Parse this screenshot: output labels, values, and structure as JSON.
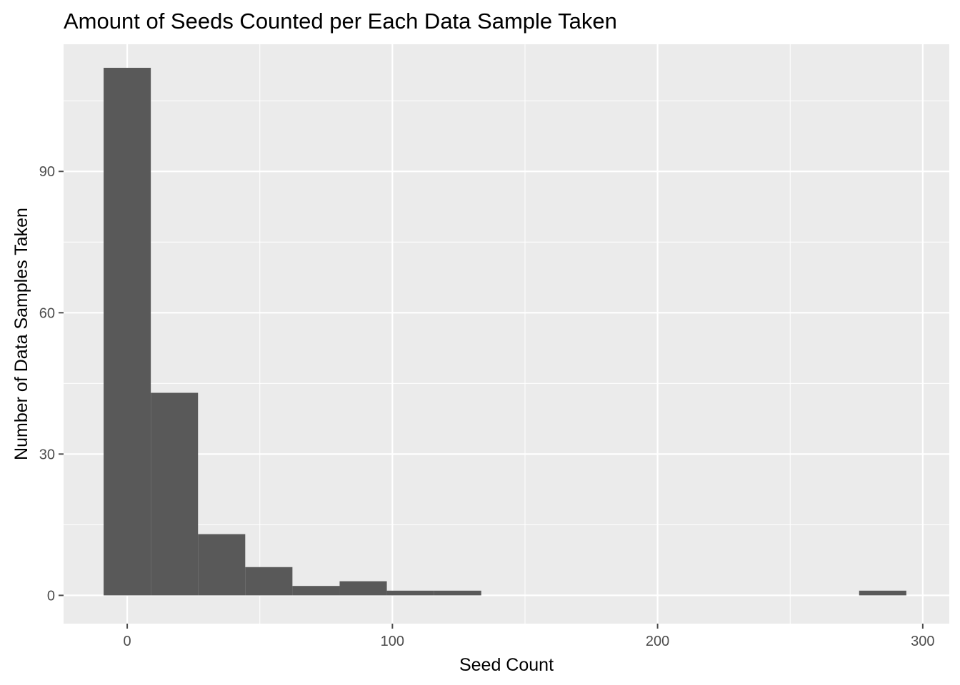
{
  "chart_data": {
    "type": "bar",
    "subtype": "histogram",
    "title": "Amount of Seeds Counted per Each Data Sample Taken",
    "xlabel": "Seed Count",
    "ylabel": "Number of Data Samples Taken",
    "xlim": [
      -24,
      310
    ],
    "ylim": [
      -6,
      117
    ],
    "x_ticks": [
      0,
      100,
      200,
      300
    ],
    "x_tick_labels": [
      "0",
      "100",
      "200",
      "300"
    ],
    "y_ticks": [
      0,
      30,
      60,
      90
    ],
    "y_tick_labels": [
      "0",
      "30",
      "60",
      "90"
    ],
    "bin_width": 17.8,
    "bins": [
      {
        "x0": -8.9,
        "x1": 8.9,
        "count": 112
      },
      {
        "x0": 8.9,
        "x1": 26.7,
        "count": 43
      },
      {
        "x0": 26.7,
        "x1": 44.5,
        "count": 13
      },
      {
        "x0": 44.5,
        "x1": 62.3,
        "count": 6
      },
      {
        "x0": 62.3,
        "x1": 80.1,
        "count": 2
      },
      {
        "x0": 80.1,
        "x1": 97.9,
        "count": 3
      },
      {
        "x0": 97.9,
        "x1": 115.7,
        "count": 1
      },
      {
        "x0": 115.7,
        "x1": 133.5,
        "count": 1
      },
      {
        "x0": 276.0,
        "x1": 293.8,
        "count": 1
      }
    ],
    "grid": true,
    "colors": {
      "panel": "#ebebeb",
      "grid": "#ffffff",
      "bar": "#595959",
      "tick": "#4d4d4d"
    }
  }
}
